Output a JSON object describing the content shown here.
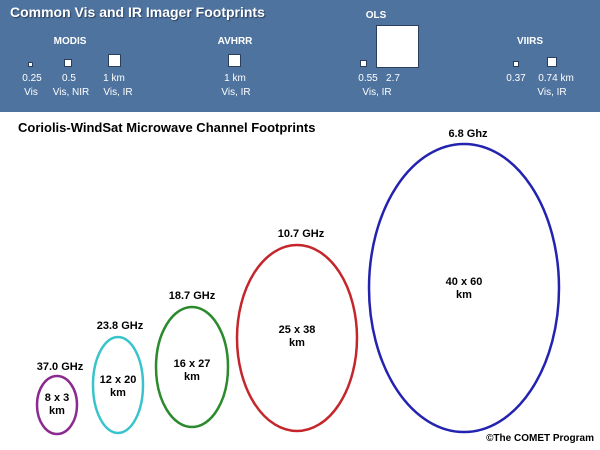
{
  "imager": {
    "title": "Common Vis and IR Imager Footprints",
    "groups": [
      {
        "name": "MODIS",
        "footprints": [
          {
            "size": "0.25",
            "band": "Vis"
          },
          {
            "size": "0.5",
            "band": "Vis, NIR"
          },
          {
            "size": "1 km",
            "band": "Vis, IR"
          }
        ]
      },
      {
        "name": "AVHRR",
        "footprints": [
          {
            "size": "1 km",
            "band": "Vis, IR"
          }
        ]
      },
      {
        "name": "OLS",
        "footprints": [
          {
            "size": "0.55"
          },
          {
            "size": "2.7"
          }
        ],
        "band": "Vis, IR"
      },
      {
        "name": "VIIRS",
        "footprints": [
          {
            "size": "0.37"
          },
          {
            "size": "0.74 km"
          }
        ],
        "band": "Vis, IR"
      }
    ]
  },
  "microwave": {
    "title": "Coriolis-WindSat Microwave Channel Footprints",
    "channels": [
      {
        "freq": "37.0 GHz",
        "dims": "8 x 3",
        "unit": "km",
        "color": "#8b2b8f"
      },
      {
        "freq": "23.8 GHz",
        "dims": "12 x 20",
        "unit": "km",
        "color": "#39c4cc"
      },
      {
        "freq": "18.7 GHz",
        "dims": "16 x 27",
        "unit": "km",
        "color": "#2a8a2c"
      },
      {
        "freq": "10.7 GHz",
        "dims": "25 x 38",
        "unit": "km",
        "color": "#c4262b"
      },
      {
        "freq": "6.8 Ghz",
        "dims": "40 x 60",
        "unit": "km",
        "color": "#2323b0"
      }
    ]
  },
  "credit": "©The COMET Program"
}
